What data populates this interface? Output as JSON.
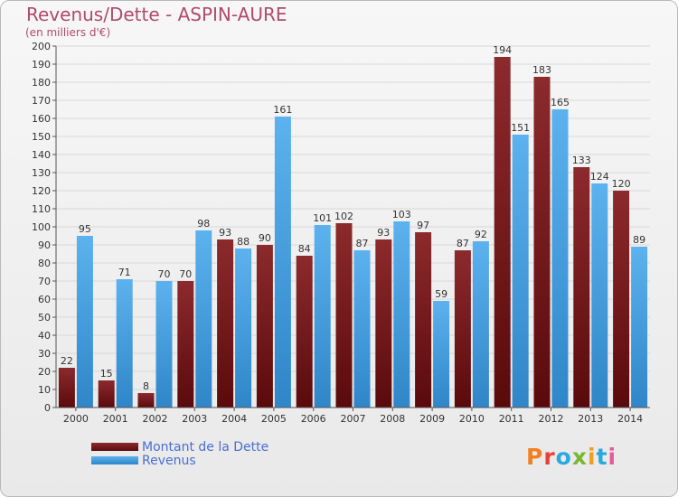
{
  "header": {
    "title": "Revenus/Dette - ASPIN-AURE",
    "subtitle": "(en milliers d'€)"
  },
  "legend": {
    "items": [
      {
        "label": "Montant de la Dette",
        "color": "#7a1518"
      },
      {
        "label": "Revenus",
        "color": "#4fa6e6"
      }
    ]
  },
  "logo": {
    "text": "Proxiti",
    "colors": [
      "#f08020",
      "#e8403a",
      "#2aa8e0",
      "#78b830",
      "#f0a020",
      "#2aa8e0",
      "#e85a9a"
    ]
  },
  "chart_data": {
    "type": "bar",
    "title": "Revenus/Dette - ASPIN-AURE",
    "subtitle": "(en milliers d'€)",
    "categories": [
      "2000",
      "2001",
      "2002",
      "2003",
      "2004",
      "2005",
      "2006",
      "2007",
      "2008",
      "2009",
      "2010",
      "2011",
      "2012",
      "2013",
      "2014"
    ],
    "series": [
      {
        "name": "Montant de la Dette",
        "color": "#7a1518",
        "values": [
          22,
          15,
          8,
          70,
          93,
          90,
          84,
          102,
          93,
          97,
          87,
          194,
          183,
          133,
          120
        ]
      },
      {
        "name": "Revenus",
        "color": "#4fa6e6",
        "values": [
          95,
          71,
          70,
          98,
          88,
          161,
          101,
          87,
          103,
          59,
          92,
          151,
          165,
          124,
          89
        ]
      }
    ],
    "ylim": [
      0,
      200
    ],
    "ytick_step": 10,
    "grid": true,
    "legend_position": "bottom-left"
  }
}
